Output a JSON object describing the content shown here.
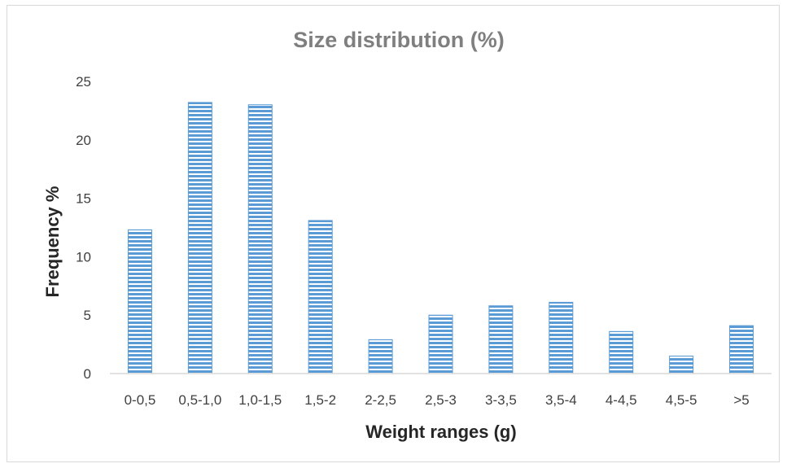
{
  "chart_data": {
    "type": "bar",
    "title": "Size distribution (%)",
    "xlabel": "Weight ranges (g)",
    "ylabel": "Frequency %",
    "categories": [
      "0-0,5",
      "0,5-1,0",
      "1,0-1,5",
      "1,5-2",
      "2-2,5",
      "2,5-3",
      "3-3,5",
      "3,5-4",
      "4-4,5",
      "4,5-5",
      ">5"
    ],
    "values": [
      12.3,
      23.2,
      23.0,
      13.1,
      2.9,
      5.0,
      5.8,
      6.1,
      3.6,
      1.5,
      4.1
    ],
    "ylim": [
      0,
      25
    ],
    "yticks": [
      "0",
      "5",
      "10",
      "15",
      "20",
      "25"
    ],
    "grid": false,
    "legend": "none",
    "colors": {
      "bar": "#5b9bd5",
      "bar_stripe": "#ffffff",
      "axis": "#d9d9d9"
    }
  }
}
